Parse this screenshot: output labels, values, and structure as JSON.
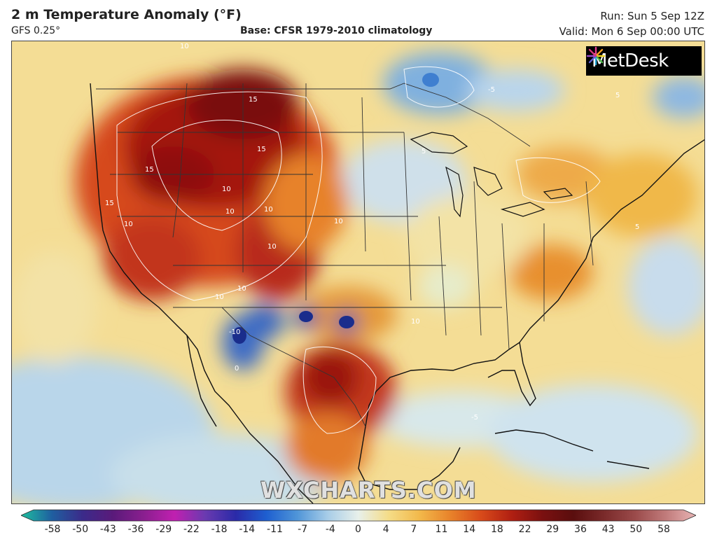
{
  "header": {
    "title": "2 m Temperature Anomaly (°F)",
    "model": "GFS 0.25°",
    "base": "Base: CFSR 1979-2010 climatology",
    "run": "Run: Sun 5 Sep 12Z",
    "valid": "Valid: Mon 6 Sep 00:00 UTC"
  },
  "logo": {
    "text": "MetDesk"
  },
  "watermark": "WXCHARTS.COM",
  "map": {
    "contour_labels": [
      "15",
      "15",
      "15",
      "15",
      "10",
      "10",
      "10",
      "10",
      "10",
      "10",
      "10",
      "10",
      "10",
      "10",
      "-10",
      "-5",
      "-5",
      "5",
      "5",
      "5",
      "0"
    ]
  },
  "colorbar": {
    "ticks": [
      "-58",
      "-50",
      "-43",
      "-36",
      "-29",
      "-22",
      "-18",
      "-14",
      "-11",
      "-7",
      "-4",
      "0",
      "4",
      "7",
      "11",
      "14",
      "18",
      "22",
      "29",
      "36",
      "43",
      "50",
      "58"
    ],
    "colors": [
      "#1fbf9f",
      "#1f5fa0",
      "#3b2b8a",
      "#5a1a7a",
      "#8a1f8f",
      "#c020b0",
      "#6a3ab0",
      "#2a2aa8",
      "#1e5fd0",
      "#4f95d8",
      "#a8cde8",
      "#e8f0ea",
      "#f5dc86",
      "#f2b84a",
      "#e8822a",
      "#d84a1a",
      "#b01f12",
      "#7a1010",
      "#5a0e0e",
      "#7a2a2a",
      "#9a4a4a",
      "#c07a7a",
      "#e8b4b4"
    ]
  }
}
